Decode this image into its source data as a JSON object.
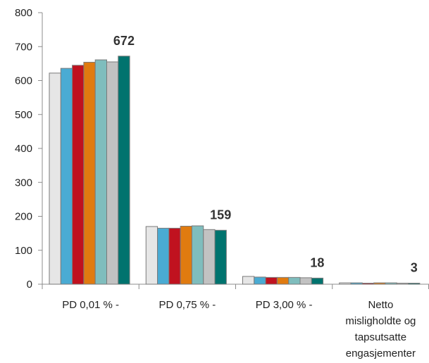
{
  "chart_data": {
    "type": "bar",
    "title": "",
    "xlabel": "",
    "ylabel": "",
    "ylim": [
      0,
      800
    ],
    "yticks": [
      0,
      100,
      200,
      300,
      400,
      500,
      600,
      700,
      800
    ],
    "grid": false,
    "legend": "none",
    "categories": [
      [
        "PD 0,01 % -"
      ],
      [
        "PD 0,75 % -"
      ],
      [
        "PD 3,00 % -"
      ],
      [
        "Netto",
        "misligholdte og",
        "tapsutsatte",
        "engasjementer"
      ]
    ],
    "series": [
      {
        "color": "#e6e6e6",
        "values": [
          622,
          170,
          23,
          4
        ]
      },
      {
        "color": "#4aabd3",
        "values": [
          636,
          165,
          21,
          4
        ]
      },
      {
        "color": "#c0121f",
        "values": [
          645,
          165,
          20,
          3
        ]
      },
      {
        "color": "#e07b10",
        "values": [
          654,
          171,
          20,
          4
        ]
      },
      {
        "color": "#7fbdbd",
        "values": [
          661,
          172,
          20,
          4
        ]
      },
      {
        "color": "#c2c2c2",
        "values": [
          655,
          161,
          19,
          3
        ]
      },
      {
        "color": "#00736e",
        "values": [
          672,
          159,
          18,
          3
        ]
      }
    ],
    "data_labels": [
      {
        "category": 0,
        "series": 6,
        "text": "672"
      },
      {
        "category": 1,
        "series": 6,
        "text": "159"
      },
      {
        "category": 2,
        "series": 6,
        "text": "18"
      },
      {
        "category": 3,
        "series": 6,
        "text": "3"
      }
    ]
  }
}
